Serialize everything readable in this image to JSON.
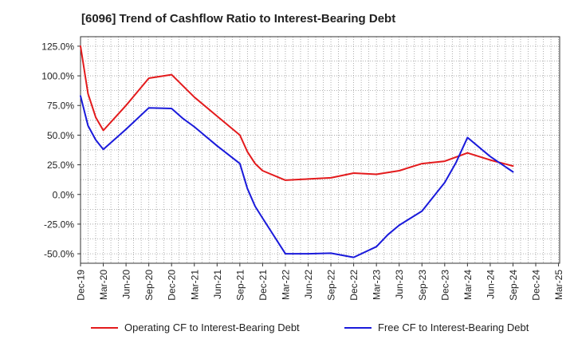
{
  "chart_data": {
    "type": "line",
    "title": "[6096]  Trend of Cashflow Ratio to Interest-Bearing Debt",
    "xlabel": "",
    "ylabel": "",
    "x_tick_labels": [
      "Dec-19",
      "Mar-20",
      "Jun-20",
      "Sep-20",
      "Dec-20",
      "Mar-21",
      "Jun-21",
      "Sep-21",
      "Dec-21",
      "Mar-22",
      "Jun-22",
      "Sep-22",
      "Dec-22",
      "Mar-23",
      "Jun-23",
      "Sep-23",
      "Dec-23",
      "Mar-24",
      "Jun-24",
      "Sep-24",
      "Dec-24",
      "Mar-25"
    ],
    "y_ticks": [
      -50,
      -25,
      0,
      25,
      50,
      75,
      100,
      125
    ],
    "y_tick_labels": [
      "-50.0%",
      "-25.0%",
      "0.0%",
      "25.0%",
      "50.0%",
      "75.0%",
      "100.0%",
      "125.0%"
    ],
    "ylim": [
      -58,
      133
    ],
    "grid": true,
    "legend_position": "bottom",
    "series": [
      {
        "name": "Operating CF to Interest-Bearing Debt",
        "color": "#e31a1c",
        "points": [
          [
            0,
            125
          ],
          [
            0.33,
            85
          ],
          [
            0.67,
            65
          ],
          [
            1,
            54
          ],
          [
            2,
            75
          ],
          [
            3,
            98
          ],
          [
            4,
            101
          ],
          [
            5,
            82
          ],
          [
            6,
            66
          ],
          [
            7,
            50
          ],
          [
            7.33,
            36
          ],
          [
            7.67,
            26
          ],
          [
            8,
            20
          ],
          [
            9,
            12
          ],
          [
            10,
            13
          ],
          [
            11,
            14
          ],
          [
            12,
            18
          ],
          [
            13,
            17
          ],
          [
            14,
            20
          ],
          [
            15,
            26
          ],
          [
            16,
            28
          ],
          [
            17,
            35
          ],
          [
            18,
            29
          ],
          [
            19,
            24
          ]
        ]
      },
      {
        "name": "Free CF to Interest-Bearing Debt",
        "color": "#1a1adb",
        "points": [
          [
            0,
            83
          ],
          [
            0.33,
            58
          ],
          [
            0.67,
            46
          ],
          [
            1,
            38
          ],
          [
            2,
            55
          ],
          [
            3,
            73
          ],
          [
            4,
            72.5
          ],
          [
            4.5,
            64
          ],
          [
            5,
            57
          ],
          [
            6,
            41
          ],
          [
            7,
            26
          ],
          [
            7.33,
            5
          ],
          [
            7.67,
            -10
          ],
          [
            8,
            -20
          ],
          [
            9,
            -50
          ],
          [
            10,
            -50
          ],
          [
            11,
            -49.5
          ],
          [
            12,
            -53
          ],
          [
            13,
            -44
          ],
          [
            13.5,
            -34
          ],
          [
            14,
            -26
          ],
          [
            15,
            -14
          ],
          [
            16,
            10
          ],
          [
            16.5,
            27
          ],
          [
            17,
            48
          ],
          [
            18,
            32
          ],
          [
            19,
            19
          ]
        ]
      }
    ]
  }
}
